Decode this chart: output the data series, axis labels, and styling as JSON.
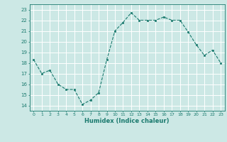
{
  "x": [
    0,
    1,
    2,
    3,
    4,
    5,
    6,
    7,
    8,
    9,
    10,
    11,
    12,
    13,
    14,
    15,
    16,
    17,
    18,
    19,
    20,
    21,
    22,
    23
  ],
  "y": [
    18.3,
    17.0,
    17.3,
    16.0,
    15.5,
    15.5,
    14.1,
    14.5,
    15.2,
    18.3,
    21.0,
    21.8,
    22.7,
    22.0,
    22.0,
    22.0,
    22.3,
    22.0,
    22.0,
    20.9,
    19.7,
    18.7,
    19.2,
    18.0
  ],
  "xlim": [
    -0.5,
    23.5
  ],
  "ylim": [
    13.5,
    23.5
  ],
  "yticks": [
    14,
    15,
    16,
    17,
    18,
    19,
    20,
    21,
    22,
    23
  ],
  "xticks": [
    0,
    1,
    2,
    3,
    4,
    5,
    6,
    7,
    8,
    9,
    10,
    11,
    12,
    13,
    14,
    15,
    16,
    17,
    18,
    19,
    20,
    21,
    22,
    23
  ],
  "xlabel": "Humidex (Indice chaleur)",
  "line_color": "#1a7a6e",
  "marker_color": "#1a7a6e",
  "bg_color": "#cce8e5",
  "grid_color": "#ffffff",
  "axis_color": "#1a7a6e",
  "tick_color": "#1a7a6e",
  "label_color": "#1a7a6e"
}
